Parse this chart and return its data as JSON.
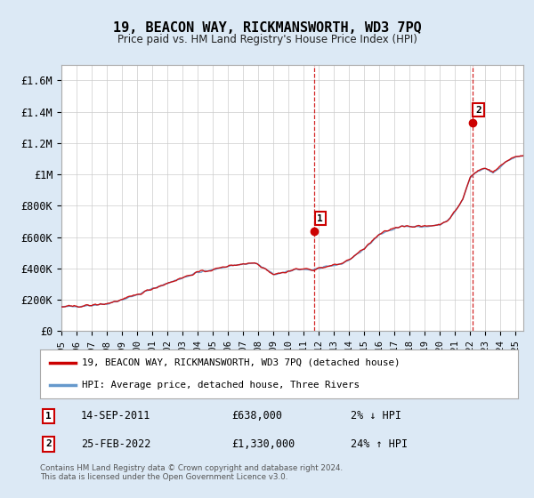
{
  "title": "19, BEACON WAY, RICKMANSWORTH, WD3 7PQ",
  "subtitle": "Price paid vs. HM Land Registry's House Price Index (HPI)",
  "ylabel_ticks": [
    "£0",
    "£200K",
    "£400K",
    "£600K",
    "£800K",
    "£1M",
    "£1.2M",
    "£1.4M",
    "£1.6M"
  ],
  "ytick_values": [
    0,
    200000,
    400000,
    600000,
    800000,
    1000000,
    1200000,
    1400000,
    1600000
  ],
  "ylim": [
    0,
    1700000
  ],
  "xlim_start": 1995.0,
  "xlim_end": 2025.5,
  "year_ticks": [
    1995,
    1996,
    1997,
    1998,
    1999,
    2000,
    2001,
    2002,
    2003,
    2004,
    2005,
    2006,
    2007,
    2008,
    2009,
    2010,
    2011,
    2012,
    2013,
    2014,
    2015,
    2016,
    2017,
    2018,
    2019,
    2020,
    2021,
    2022,
    2023,
    2024,
    2025
  ],
  "sale1_x": 2011.71,
  "sale1_y": 638000,
  "sale2_x": 2022.15,
  "sale2_y": 1330000,
  "sale1_date": "14-SEP-2011",
  "sale1_price": "£638,000",
  "sale1_hpi": "2% ↓ HPI",
  "sale2_date": "25-FEB-2022",
  "sale2_price": "£1,330,000",
  "sale2_hpi": "24% ↑ HPI",
  "line1_color": "#cc0000",
  "line2_color": "#6699cc",
  "background_color": "#dce9f5",
  "grid_color": "#cccccc",
  "legend1_label": "19, BEACON WAY, RICKMANSWORTH, WD3 7PQ (detached house)",
  "legend2_label": "HPI: Average price, detached house, Three Rivers",
  "footer": "Contains HM Land Registry data © Crown copyright and database right 2024.\nThis data is licensed under the Open Government Licence v3.0.",
  "anchor_years": [
    1994.5,
    1995.0,
    1996.0,
    1997.0,
    1998.0,
    1999.0,
    2000.0,
    2001.0,
    2002.0,
    2003.0,
    2004.0,
    2005.0,
    2006.0,
    2007.0,
    2007.8,
    2008.5,
    2009.0,
    2009.8,
    2010.5,
    2011.0,
    2011.5,
    2012.0,
    2012.8,
    2013.5,
    2014.0,
    2014.8,
    2015.5,
    2016.0,
    2016.8,
    2017.5,
    2018.0,
    2018.8,
    2019.5,
    2020.0,
    2020.5,
    2021.0,
    2021.5,
    2022.0,
    2022.5,
    2023.0,
    2023.5,
    2024.0,
    2024.5,
    2025.0,
    2025.6
  ],
  "anchor_hpi": [
    148000,
    155000,
    158000,
    165000,
    175000,
    200000,
    232000,
    270000,
    305000,
    340000,
    375000,
    390000,
    415000,
    428000,
    435000,
    395000,
    362000,
    375000,
    395000,
    395000,
    390000,
    400000,
    415000,
    430000,
    455000,
    510000,
    570000,
    615000,
    650000,
    670000,
    668000,
    665000,
    672000,
    678000,
    705000,
    760000,
    840000,
    980000,
    1020000,
    1040000,
    1010000,
    1050000,
    1090000,
    1110000,
    1120000
  ]
}
